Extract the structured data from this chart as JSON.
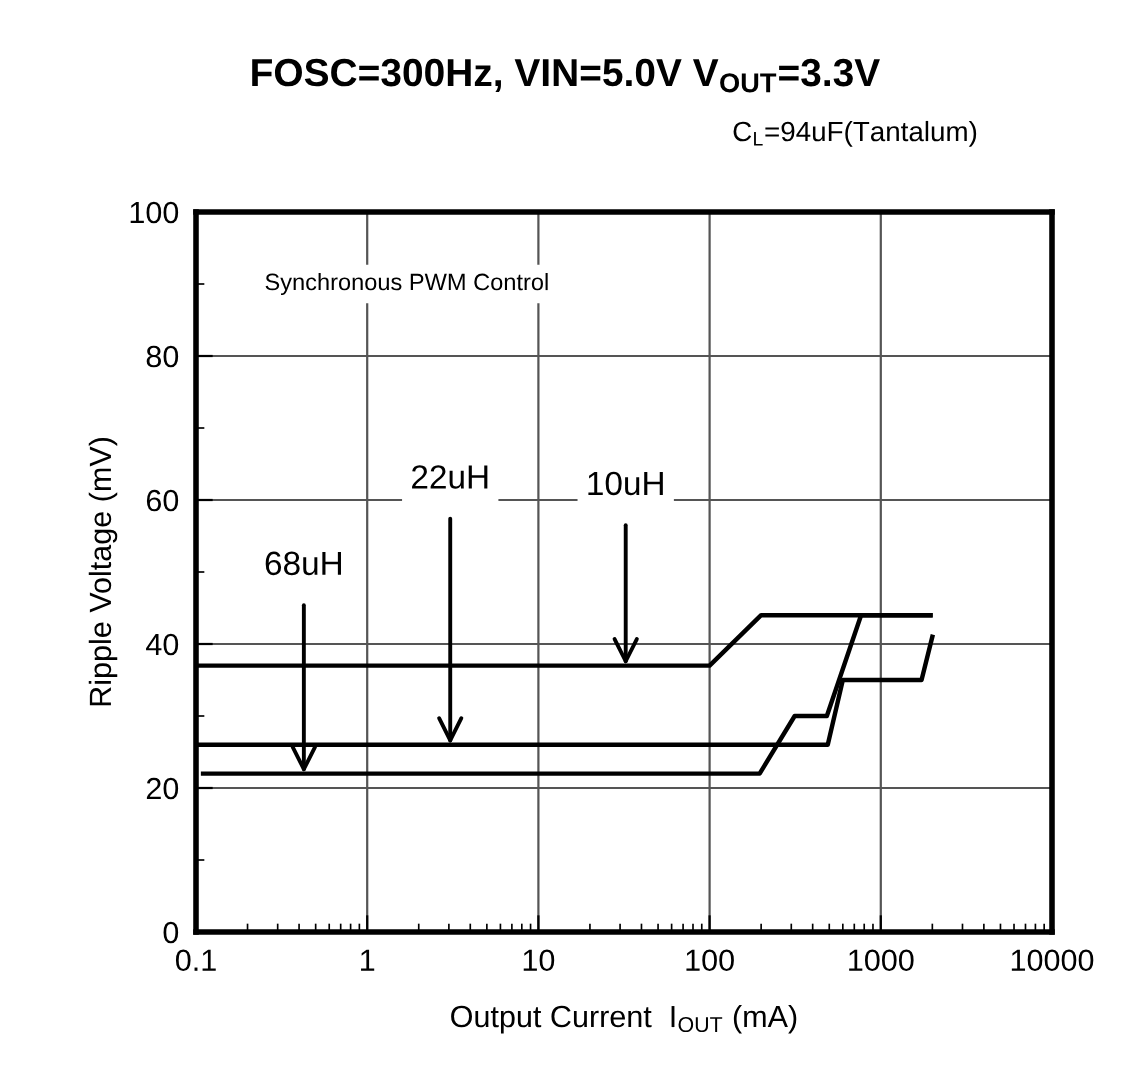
{
  "chart_data": {
    "type": "line",
    "title": "FOSC=300Hz, VIN=5.0V V$_{OUT}$=3.3V",
    "subtitle": "C$_{L}$=94uF(Tantalum)",
    "xlabel": "Output Current  I$_{OUT}$ (mA)",
    "ylabel": "Ripple Voltage (mV)",
    "series": [
      {
        "name": "10uH",
        "color": "#000000",
        "x": [
          0.105,
          100,
          200,
          1950
        ],
        "values": [
          37,
          37,
          44,
          44
        ]
      },
      {
        "name": "22uH",
        "color": "#000000",
        "x": [
          0.1,
          490,
          600,
          1730,
          2000
        ],
        "values": [
          26,
          26,
          35,
          35,
          41
        ]
      },
      {
        "name": "68uH",
        "color": "#000000",
        "x": [
          0.11,
          196,
          314,
          484,
          767,
          1950
        ],
        "values": [
          22,
          22,
          30,
          30,
          44,
          44
        ]
      }
    ],
    "annotations": [
      "Synchronous PWM Control"
    ],
    "log": "x",
    "xlim": [
      0.1,
      10000
    ],
    "xticks": [
      0.1,
      1,
      10,
      100,
      1000,
      10000
    ],
    "ylim": [
      0,
      100
    ],
    "yticks": [
      0,
      20,
      40,
      60,
      80,
      100
    ],
    "grid": true,
    "legend": false,
    "marker": "none",
    "line_style": "solid"
  }
}
